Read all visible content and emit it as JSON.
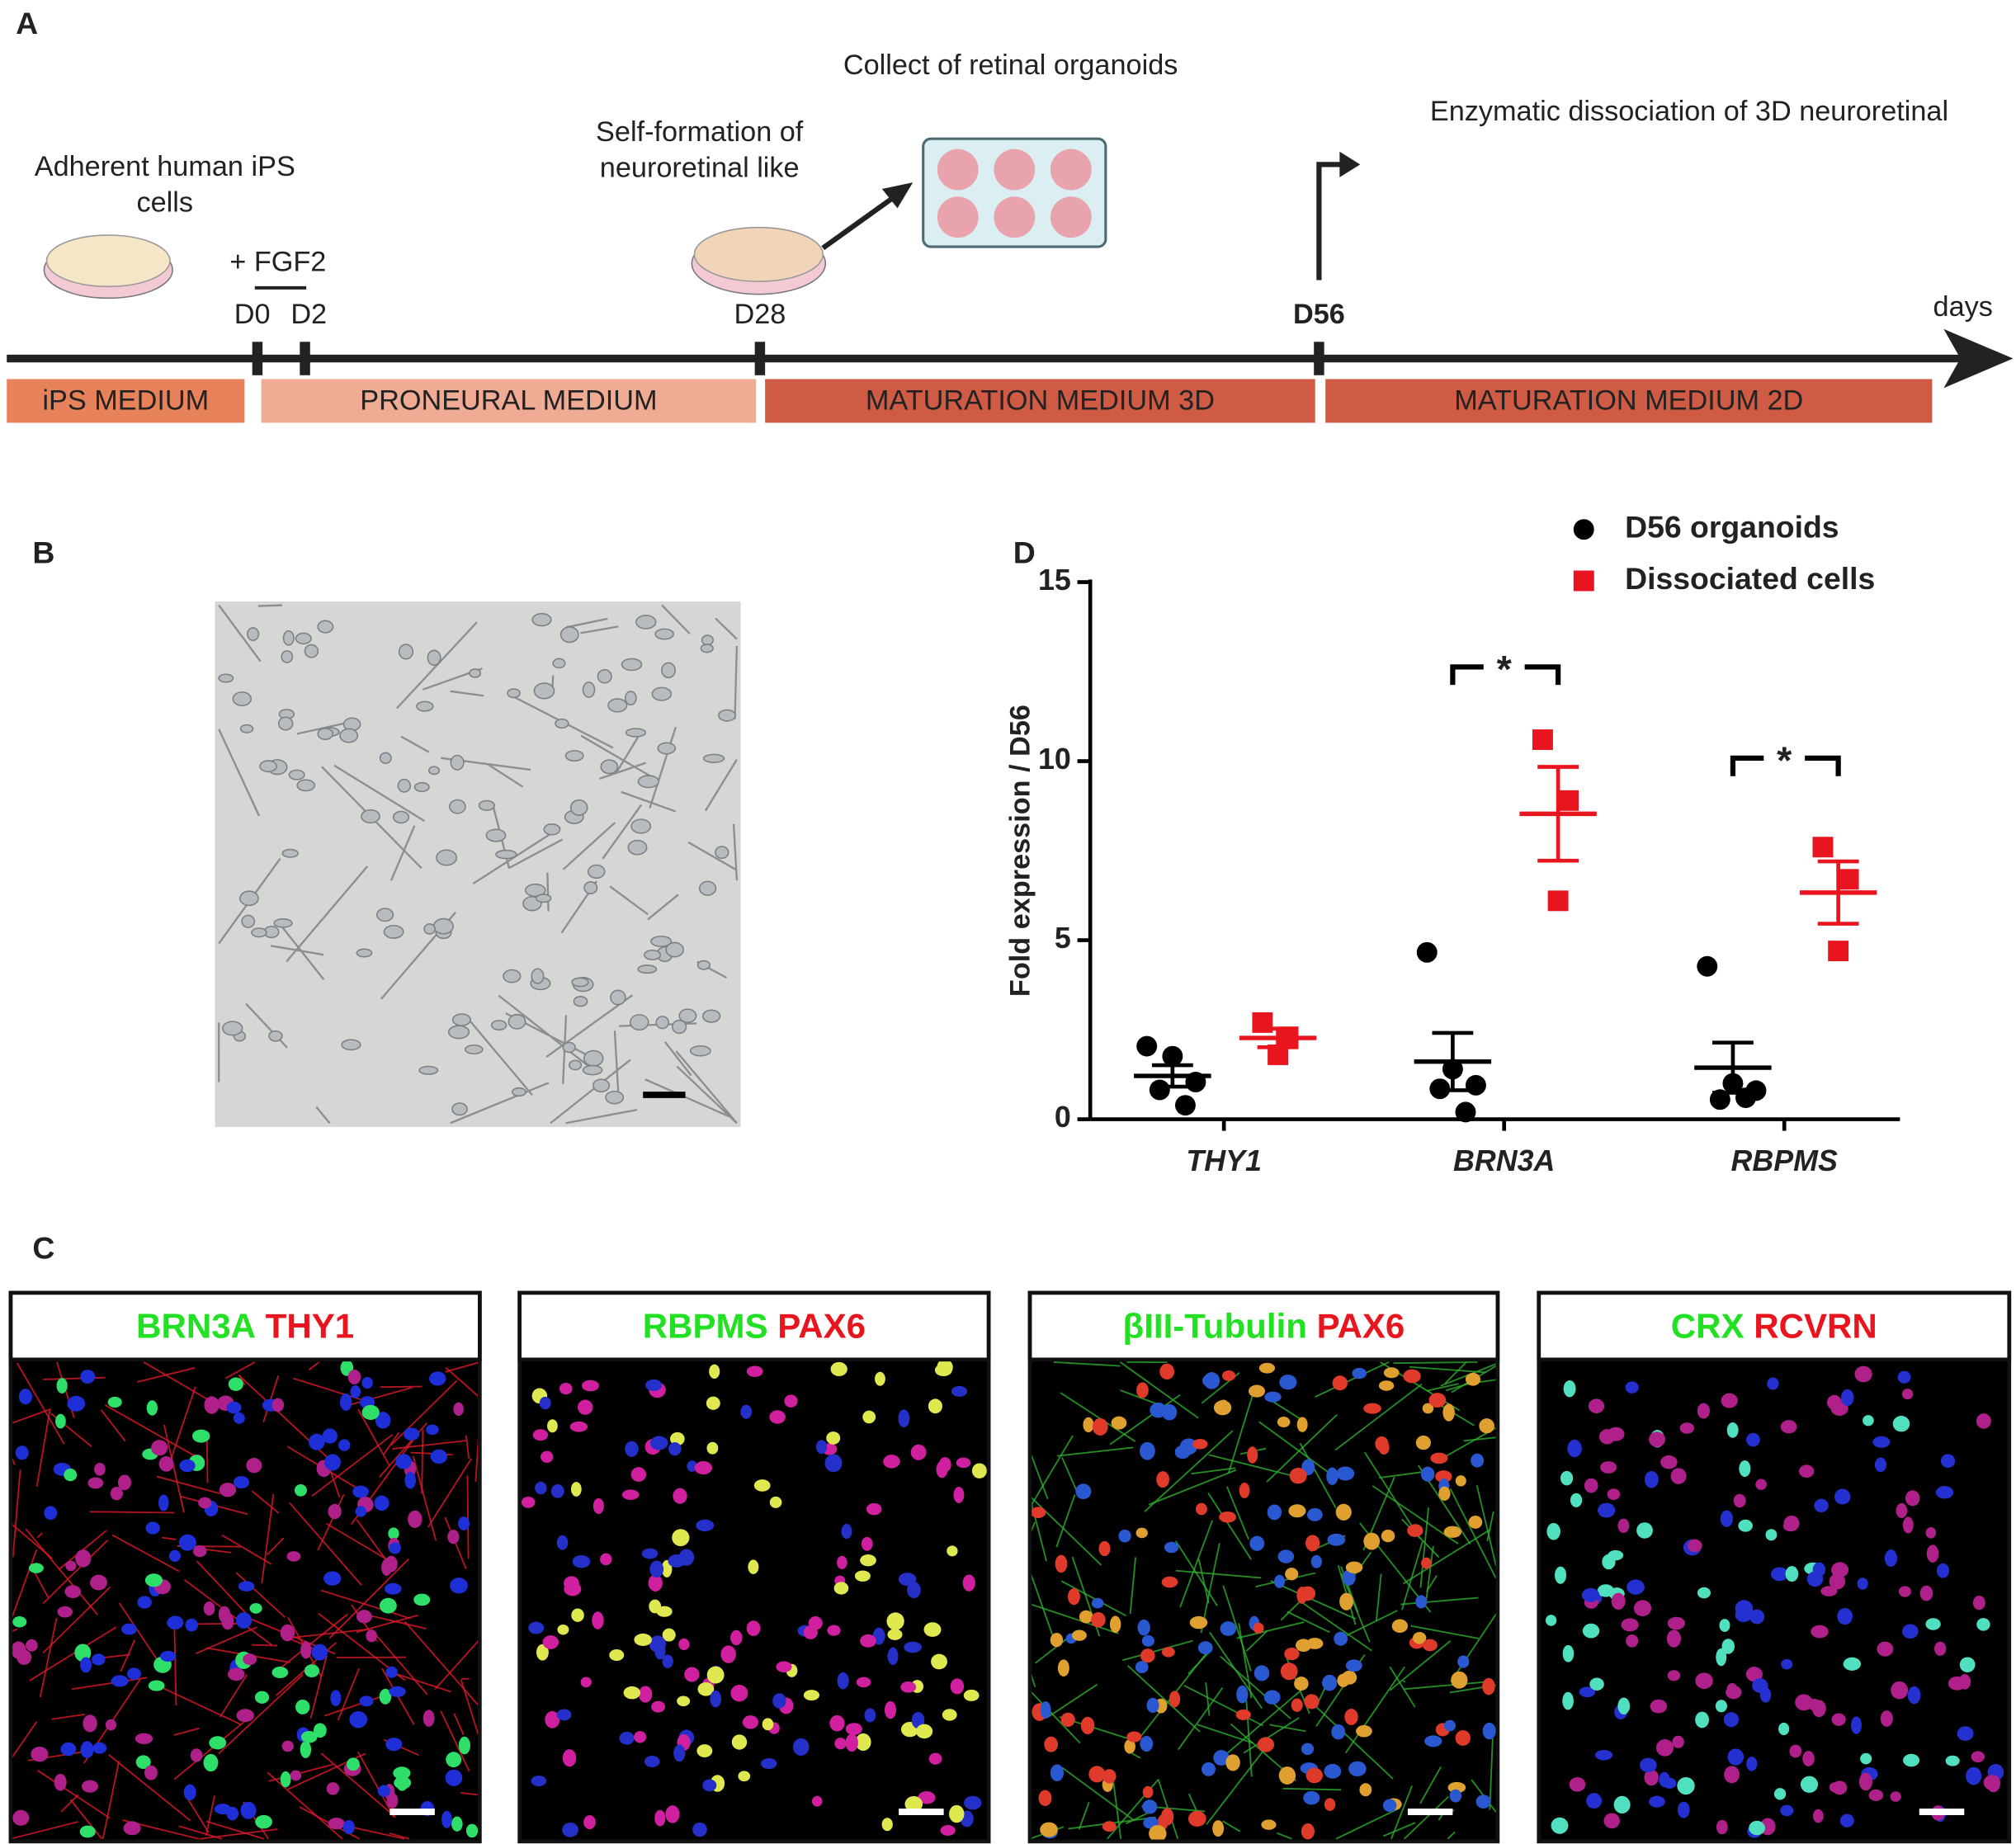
{
  "panel_a": {
    "label": "A",
    "start_label": [
      "Adherent human iPS",
      "cells"
    ],
    "treatment": "+ FGF2",
    "days": [
      "D0",
      "D2",
      "D28",
      "D56"
    ],
    "axis_label": "days",
    "step_28": [
      "Self-formation of",
      "neuroretinal like"
    ],
    "collect": "Collect of retinal organoids",
    "dissociation": "Enzymatic dissociation of 3D neuroretinal",
    "media": [
      "iPS MEDIUM",
      "PRONEURAL MEDIUM",
      "MATURATION MEDIUM 3D",
      "MATURATION MEDIUM 2D"
    ]
  },
  "panel_b": {
    "label": "B"
  },
  "panel_c": {
    "label": "C",
    "images": [
      {
        "green": "BRN3A",
        "red": "THY1"
      },
      {
        "green": "RBPMS",
        "red": "PAX6"
      },
      {
        "green": "βIII-Tubulin",
        "red": "PAX6"
      },
      {
        "green": "CRX",
        "red": "RCVRN"
      }
    ]
  },
  "chart_data": {
    "type": "scatter",
    "panel_label": "D",
    "ylabel": "Fold expression / D56",
    "categories": [
      "THY1",
      "BRN3A",
      "RBPMS"
    ],
    "ylim": [
      0,
      15
    ],
    "yticks": [
      0,
      5,
      10,
      15
    ],
    "legend": "upper right",
    "series": [
      {
        "name": "D56 organoids",
        "color": "#000000",
        "marker": "circle",
        "points": [
          [
            2.04,
            1.76,
            1.04,
            0.82,
            0.39
          ],
          [
            4.66,
            1.4,
            0.95,
            0.85,
            0.2
          ],
          [
            4.27,
            1.0,
            0.8,
            0.55,
            0.6
          ]
        ],
        "mean": [
          1.21,
          1.61,
          1.44
        ],
        "sem": [
          0.3,
          0.8,
          0.7
        ]
      },
      {
        "name": "Dissociated cells",
        "color": "#e8141e",
        "marker": "square",
        "points": [
          [
            2.7,
            2.3,
            1.8
          ],
          [
            10.6,
            8.9,
            6.1
          ],
          [
            7.6,
            6.7,
            4.7
          ]
        ],
        "mean": [
          2.27,
          8.53,
          6.33
        ],
        "sem": [
          0.26,
          1.31,
          0.87
        ]
      }
    ],
    "annotations": [
      "*",
      "*"
    ]
  }
}
